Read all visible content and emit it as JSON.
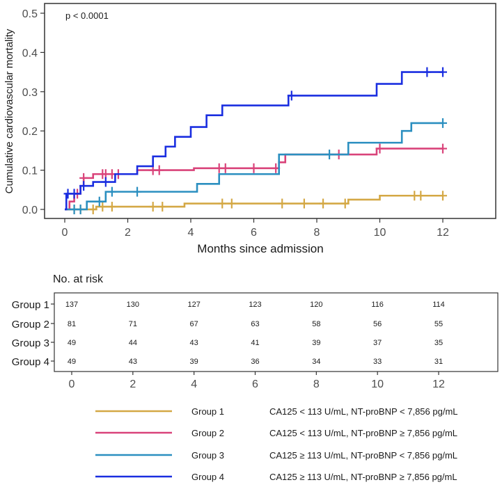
{
  "chart_data": {
    "type": "line",
    "subtype": "kaplan-meier-cumulative-incidence",
    "annotation": "p < 0.0001",
    "xlabel": "Months since admission",
    "ylabel": "Cumulative cardiovascular mortality",
    "xlim": [
      0,
      12
    ],
    "ylim": [
      0,
      0.5
    ],
    "x_ticks": [
      "0",
      "2",
      "4",
      "6",
      "8",
      "10",
      "12"
    ],
    "y_ticks": [
      "0.0",
      "0.1",
      "0.2",
      "0.3",
      "0.4",
      "0.5"
    ],
    "grid": false,
    "series": [
      {
        "name": "Group 1",
        "description": "CA125 < 113 U/mL, NT-proBNP < 7,856 pg/mL",
        "color": "#d4a845",
        "steps": [
          [
            0,
            0
          ],
          [
            1.0,
            0.007
          ],
          [
            3.8,
            0.015
          ],
          [
            9.0,
            0.025
          ],
          [
            10.0,
            0.035
          ],
          [
            12,
            0.035
          ]
        ],
        "censored": [
          0.3,
          0.5,
          0.9,
          1.2,
          1.5,
          2.8,
          3.1,
          5.0,
          5.3,
          6.9,
          7.6,
          8.2,
          8.9,
          11.1,
          11.3,
          12
        ]
      },
      {
        "name": "Group 2",
        "description": "CA125 < 113 U/mL, NT-proBNP ≥ 7,856 pg/mL",
        "color": "#d9437a",
        "steps": [
          [
            0,
            0
          ],
          [
            0.15,
            0.02
          ],
          [
            0.3,
            0.04
          ],
          [
            0.5,
            0.06
          ],
          [
            0.6,
            0.08
          ],
          [
            0.9,
            0.09
          ],
          [
            2.3,
            0.1
          ],
          [
            4.1,
            0.105
          ],
          [
            6.8,
            0.12
          ],
          [
            7.0,
            0.14
          ],
          [
            9.9,
            0.155
          ],
          [
            12,
            0.155
          ]
        ],
        "censored": [
          0.4,
          0.6,
          1.2,
          1.3,
          1.5,
          1.7,
          2.8,
          3.0,
          4.9,
          5.1,
          6.0,
          6.7,
          8.7,
          10.0,
          12
        ]
      },
      {
        "name": "Group 3",
        "description": "CA125 ≥ 113 U/mL, NT-proBNP < 7,856 pg/mL",
        "color": "#2b8fc0",
        "steps": [
          [
            0,
            0
          ],
          [
            0.7,
            0.02
          ],
          [
            1.3,
            0.045
          ],
          [
            4.2,
            0.065
          ],
          [
            4.9,
            0.09
          ],
          [
            6.8,
            0.14
          ],
          [
            9.0,
            0.17
          ],
          [
            10.7,
            0.2
          ],
          [
            11.0,
            0.22
          ],
          [
            12,
            0.22
          ]
        ],
        "censored": [
          0.3,
          0.5,
          1.1,
          1.5,
          2.3,
          8.4,
          12
        ]
      },
      {
        "name": "Group 4",
        "description": "CA125 ≥ 113 U/mL, NT-proBNP ≥ 7,856 pg/mL",
        "color": "#1a2ee0",
        "steps": [
          [
            0,
            0
          ],
          [
            0.05,
            0.04
          ],
          [
            0.5,
            0.06
          ],
          [
            0.9,
            0.07
          ],
          [
            1.6,
            0.09
          ],
          [
            2.3,
            0.11
          ],
          [
            2.8,
            0.135
          ],
          [
            3.2,
            0.16
          ],
          [
            3.5,
            0.185
          ],
          [
            4.0,
            0.21
          ],
          [
            4.5,
            0.24
          ],
          [
            5.0,
            0.265
          ],
          [
            7.1,
            0.29
          ],
          [
            9.9,
            0.32
          ],
          [
            10.7,
            0.35
          ],
          [
            12,
            0.35
          ]
        ],
        "censored": [
          0.1,
          0.3,
          0.6,
          1.3,
          7.2,
          11.5,
          12
        ]
      }
    ],
    "risk_table": {
      "title": "No. at risk",
      "times": [
        "0",
        "2",
        "4",
        "6",
        "8",
        "10",
        "12"
      ],
      "rows": [
        {
          "group": "Group 1",
          "values": [
            137,
            130,
            127,
            123,
            120,
            116,
            114
          ]
        },
        {
          "group": "Group 2",
          "values": [
            81,
            71,
            67,
            63,
            58,
            56,
            55
          ]
        },
        {
          "group": "Group 3",
          "values": [
            49,
            44,
            43,
            41,
            39,
            37,
            35
          ]
        },
        {
          "group": "Group 4",
          "values": [
            49,
            43,
            39,
            36,
            34,
            33,
            31
          ]
        }
      ]
    },
    "legend_position": "bottom"
  }
}
